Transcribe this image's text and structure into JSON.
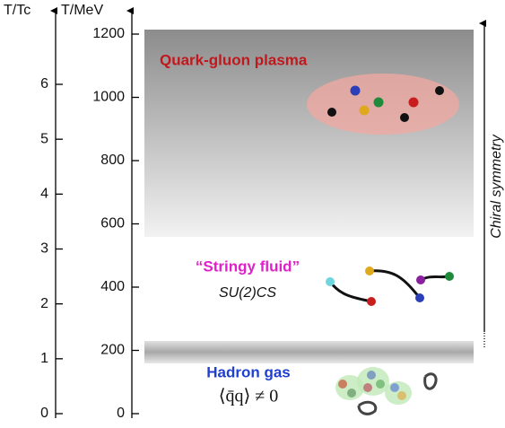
{
  "axes": {
    "left": {
      "label": "T/Tc",
      "ticks": [
        0,
        1,
        2,
        3,
        4,
        5,
        6
      ]
    },
    "right": {
      "label": "T/MeV",
      "ticks": [
        0,
        200,
        400,
        600,
        800,
        1000,
        1200
      ]
    }
  },
  "regions": {
    "qgp": {
      "label": "Quark-gluon plasma"
    },
    "stringy": {
      "label": "“Stringy fluid”",
      "sublabel": "SU(2)CS"
    },
    "hadron": {
      "label": "Hadron gas",
      "sublabel": "⟨q̄q⟩ ≠ 0"
    }
  },
  "chiral": {
    "label": "Chiral symmetry"
  }
}
